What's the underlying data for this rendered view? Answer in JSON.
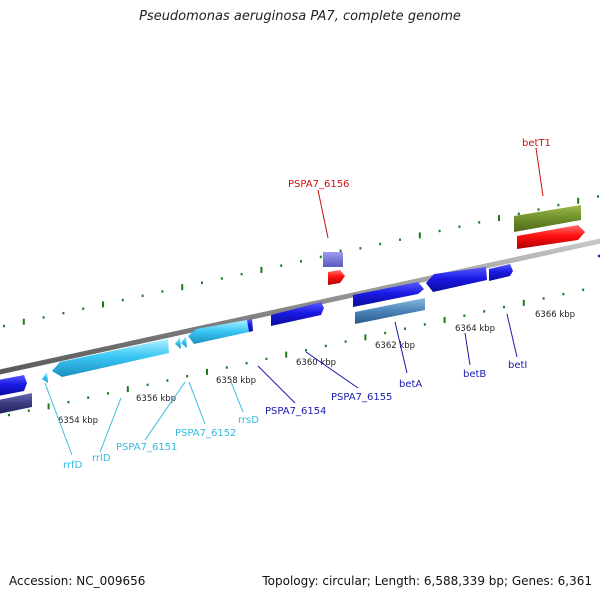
{
  "title": "Pseudomonas aeruginosa PA7, complete genome",
  "footer": {
    "accession": "Accession: NC_009656",
    "topology": "Topology: circular; Length: 6,588,339 bp; Genes: 6,361"
  },
  "colors": {
    "backbone": "#8c8c8c",
    "tick": "#1d7a1d",
    "rna_label": "#33bbdd",
    "cds_label": "#1a1ab0",
    "highlight_label": "#cc1111"
  },
  "scale_ticks": [
    "6354 kbp",
    "6356 kbp",
    "6358 kbp",
    "6360 kbp",
    "6362 kbp",
    "6364 kbp",
    "6366 kbp"
  ],
  "genes": {
    "rrfD": "rrfD",
    "rrlD": "rrlD",
    "PSPA7_6151": "PSPA7_6151",
    "PSPA7_6152": "PSPA7_6152",
    "rrsD": "rrsD",
    "PSPA7_6154": "PSPA7_6154",
    "PSPA7_6155": "PSPA7_6155",
    "betA": "betA",
    "betB": "betB",
    "betI": "betI",
    "PSPA7_6156": "PSPA7_6156",
    "betT1": "betT1"
  }
}
